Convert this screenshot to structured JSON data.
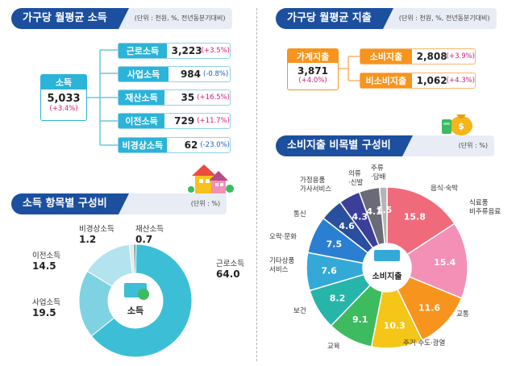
{
  "income_section": {
    "title": "가구당 월평균 소득",
    "unit": "(단위 : 천원, %, 전년동분기대비)",
    "total": {
      "label": "소득",
      "value": "5,033",
      "change": "(+3.4%)"
    },
    "items": [
      {
        "label": "근로소득",
        "value": "3,223",
        "change": "(+3.5%)",
        "negative": false
      },
      {
        "label": "사업소득",
        "value": "984",
        "change": "(-0.8%)",
        "negative": true
      },
      {
        "label": "재산소득",
        "value": "35",
        "change": "(+16.5%)",
        "negative": false
      },
      {
        "label": "이전소득",
        "value": "729",
        "change": "(+11.7%)",
        "negative": false
      },
      {
        "label": "비경상소득",
        "value": "62",
        "change": "(-23.0%)",
        "negative": true
      }
    ]
  },
  "expense_section": {
    "title": "가구당 월평균 지출",
    "unit": "(단위 : 천원, %, 전년동분기대비)",
    "total": {
      "label": "가계지출",
      "value": "3,871",
      "change": "(+4.0%)"
    },
    "items": [
      {
        "label": "소비지출",
        "value": "2,808",
        "change": "(+3.9%)"
      },
      {
        "label": "비소비지출",
        "value": "1,062",
        "change": "(+4.3%)"
      }
    ]
  },
  "income_composition": {
    "title": "소득 항목별 구성비",
    "unit": "(단위 : %)",
    "center_label": "소득"
  },
  "consumption_composition": {
    "title": "소비지출 비목별 구성비",
    "unit": "(단위 : %)",
    "center_label": "소비지출"
  },
  "chart_data": [
    {
      "type": "pie",
      "title": "소득 항목별 구성비",
      "categories": [
        "근로소득",
        "사업소득",
        "이전소득",
        "비경상소득",
        "재산소득"
      ],
      "values": [
        64.0,
        19.5,
        14.5,
        1.2,
        0.7
      ],
      "value_labels": [
        "64.0",
        "19.5",
        "14.5",
        "1.2",
        "0.7"
      ],
      "colors": [
        "#3cbfd6",
        "#7fd2e2",
        "#b3e3ee",
        "#d6eef4",
        "#8a8a8a"
      ]
    },
    {
      "type": "pie",
      "title": "소비지출 비목별 구성비",
      "categories": [
        "음식·숙박",
        "식료품 비주류음료",
        "교통",
        "주거·수도·광열",
        "교육",
        "보건",
        "기타상품 서비스",
        "오락·문화",
        "통신",
        "가정용품 가사서비스",
        "의류 ·신발",
        "주류 ·담배"
      ],
      "values": [
        15.8,
        15.4,
        11.6,
        10.3,
        9.1,
        8.2,
        7.6,
        7.5,
        4.6,
        4.3,
        4.1,
        1.5
      ],
      "value_labels": [
        "15.8",
        "15.4",
        "11.6",
        "10.3",
        "9.1",
        "8.2",
        "7.6",
        "7.5",
        "4.6",
        "4.3",
        "4.1",
        "1.5"
      ],
      "colors": [
        "#ef6b7b",
        "#f48fb5",
        "#f7941d",
        "#f5c518",
        "#3dbb5e",
        "#26b5a8",
        "#34a9d8",
        "#2b7fd0",
        "#2a4f9c",
        "#3b3f9a",
        "#6b6b78",
        "#b5b5b5"
      ]
    }
  ]
}
